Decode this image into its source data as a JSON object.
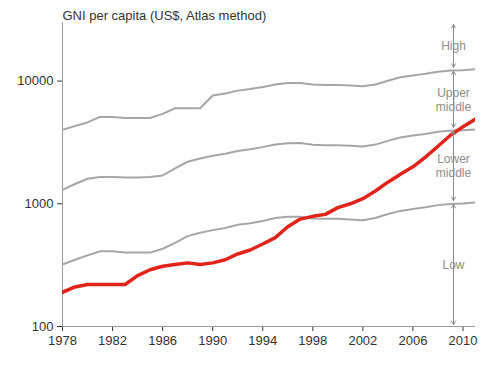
{
  "chart_data": {
    "type": "line",
    "title": "GNI per capita (US$, Atlas method)",
    "log": "y",
    "grid": false,
    "x": [
      1978,
      1979,
      1980,
      1981,
      1982,
      1983,
      1984,
      1985,
      1986,
      1987,
      1988,
      1989,
      1990,
      1991,
      1992,
      1993,
      1994,
      1995,
      1996,
      1997,
      1998,
      1999,
      2000,
      2001,
      2002,
      2003,
      2004,
      2005,
      2006,
      2007,
      2008,
      2009,
      2010,
      2011
    ],
    "xlim": [
      1978,
      2011
    ],
    "xticks": [
      1978,
      1982,
      1986,
      1990,
      1994,
      1998,
      2002,
      2006,
      2010
    ],
    "ylim": [
      100,
      30000
    ],
    "yticks": [
      100,
      1000,
      10000
    ],
    "annotations": [
      "High",
      "Upper\nmiddle",
      "Lower\nmiddle",
      "Low"
    ],
    "series": [
      {
        "color": "#a6a6a6",
        "values": [
          320,
          350,
          380,
          410,
          410,
          400,
          400,
          400,
          430,
          480,
          545,
          580,
          610,
          635,
          675,
          695,
          725,
          765,
          785,
          785,
          760,
          755,
          755,
          745,
          735,
          765,
          825,
          875,
          905,
          935,
          975,
          995,
          1005,
          1025
        ]
      },
      {
        "color": "#a6a6a6",
        "values": [
          1300,
          1450,
          1600,
          1650,
          1650,
          1640,
          1640,
          1650,
          1700,
          1940,
          2200,
          2335,
          2465,
          2555,
          2695,
          2785,
          2895,
          3035,
          3115,
          3125,
          3030,
          2995,
          2995,
          2975,
          2935,
          3035,
          3255,
          3465,
          3595,
          3705,
          3855,
          3945,
          3975,
          4035
        ]
      },
      {
        "color": "#a6a6a6",
        "values": [
          4000,
          4300,
          4600,
          5100,
          5100,
          5000,
          5000,
          5000,
          5400,
          6000,
          6000,
          6000,
          7620,
          7910,
          8355,
          8625,
          8955,
          9385,
          9635,
          9655,
          9360,
          9265,
          9265,
          9205,
          9075,
          9385,
          10065,
          10725,
          11115,
          11455,
          11905,
          12195,
          12275,
          12475
        ]
      },
      {
        "color": "#e2231a",
        "values": [
          190,
          210,
          220,
          220,
          220,
          220,
          260,
          290,
          310,
          320,
          330,
          320,
          330,
          350,
          390,
          420,
          470,
          530,
          650,
          750,
          790,
          820,
          930,
          1000,
          1100,
          1270,
          1500,
          1740,
          2000,
          2400,
          2940,
          3620,
          4240,
          4900
        ]
      }
    ]
  }
}
